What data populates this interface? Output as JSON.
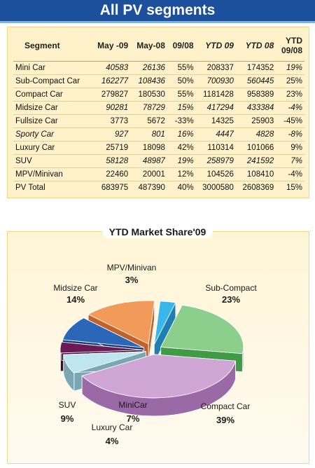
{
  "page_title": "All  PV segments",
  "table": {
    "headers": {
      "segment": "Segment",
      "may09": "May -09",
      "may08": "May-08",
      "growth": "09/08",
      "ytd09": "YTD 09",
      "ytd08": "YTD 08",
      "ytd_growth_line1": "YTD",
      "ytd_growth_line2": "09/08"
    },
    "rows": [
      {
        "segment": "Mini Car",
        "may09": "40583",
        "may08": "26136",
        "growth": "55%",
        "ytd09": "208337",
        "ytd08": "174352",
        "ytd_growth": "19%"
      },
      {
        "segment": "Sub-Compact Car",
        "may09": "162277",
        "may08": "108436",
        "growth": "50%",
        "ytd09": "700930",
        "ytd08": "560445",
        "ytd_growth": "25%"
      },
      {
        "segment": "Compact Car",
        "may09": "279827",
        "may08": "180530",
        "growth": "55%",
        "ytd09": "1181428",
        "ytd08": "958389",
        "ytd_growth": "23%"
      },
      {
        "segment": "Midsize  Car",
        "may09": "90281",
        "may08": "78729",
        "growth": "15%",
        "ytd09": "417294",
        "ytd08": "433384",
        "ytd_growth": "-4%"
      },
      {
        "segment": "Fullsize  Car",
        "may09": "3773",
        "may08": "5672",
        "growth": "-33%",
        "ytd09": "14325",
        "ytd08": "25903",
        "ytd_growth": "-45%"
      },
      {
        "segment": "Sporty   Car",
        "may09": "927",
        "may08": "801",
        "growth": "16%",
        "ytd09": "4447",
        "ytd08": "4828",
        "ytd_growth": "-8%"
      },
      {
        "segment": "Luxury  Car",
        "may09": "25719",
        "may08": "18098",
        "growth": "42%",
        "ytd09": "110314",
        "ytd08": "101066",
        "ytd_growth": "9%"
      },
      {
        "segment": "SUV",
        "may09": "58128",
        "may08": "48987",
        "growth": "19%",
        "ytd09": "258979",
        "ytd08": "241592",
        "ytd_growth": "7%"
      },
      {
        "segment": "MPV/Minivan",
        "may09": "22460",
        "may08": "20001",
        "growth": "12%",
        "ytd09": "104526",
        "ytd08": "108410",
        "ytd_growth": "-4%"
      },
      {
        "segment": "PV  Total",
        "may09": "683975",
        "may08": "487390",
        "growth": "40%",
        "ytd09": "3000580",
        "ytd08": "2608369",
        "ytd_growth": "15%"
      }
    ]
  },
  "chart_data": {
    "type": "pie",
    "title": "YTD  Market Share'09",
    "slices": [
      {
        "label": "Sub-Compact",
        "pct_label": "23%",
        "value": 23,
        "color": "#8ccf8c",
        "side": "#3f9b46"
      },
      {
        "label": "Compact Car",
        "pct_label": "39%",
        "value": 39,
        "color": "#cfa6d6",
        "side": "#9a6aa6"
      },
      {
        "label": "MiniCar",
        "pct_label": "7%",
        "value": 7,
        "color": "#bfe6ee",
        "side": "#7aa7b3"
      },
      {
        "label": "Luxury Car",
        "pct_label": "4%",
        "value": 4,
        "color": "#6a1b55",
        "side": "#3d0b30"
      },
      {
        "label": "SUV",
        "pct_label": "9%",
        "value": 9,
        "color": "#2b66b8",
        "side": "#163e7a"
      },
      {
        "label": "Midsize Car",
        "pct_label": "14%",
        "value": 14,
        "color": "#f29a5a",
        "side": "#c0622a"
      },
      {
        "label": "MPV/Minivan",
        "pct_label": "3%",
        "value": 3,
        "color": "#39b7ea",
        "side": "#1e7fb0"
      }
    ]
  }
}
